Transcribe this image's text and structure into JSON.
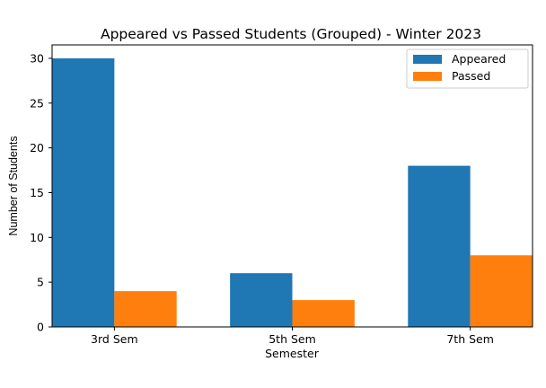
{
  "chart_data": {
    "type": "bar",
    "title": "Appeared vs Passed Students (Grouped) - Winter 2023",
    "xlabel": "Semester",
    "ylabel": "Number of Students",
    "categories": [
      "3rd Sem",
      "5th Sem",
      "7th Sem"
    ],
    "series": [
      {
        "name": "Appeared",
        "values": [
          30,
          6,
          18
        ],
        "color": "#1f77b4"
      },
      {
        "name": "Passed",
        "values": [
          4,
          3,
          8
        ],
        "color": "#ff7f0e"
      }
    ],
    "ylim": [
      0,
      31.5
    ],
    "yticks": [
      "0",
      "5",
      "10",
      "15",
      "20",
      "25",
      "30"
    ],
    "grid": false,
    "legend": "top-right"
  }
}
